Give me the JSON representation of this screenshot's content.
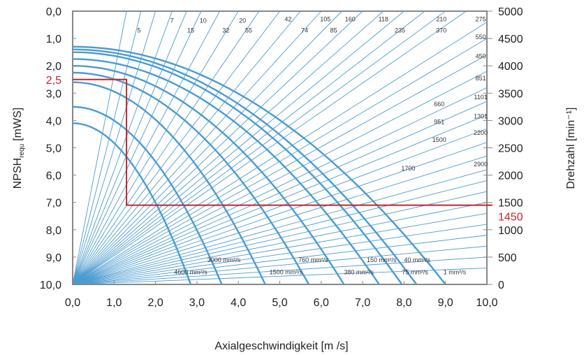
{
  "chart_data": {
    "type": "line",
    "xlabel": "Axialgeschwindigkeit [m /s]",
    "ylabel_left_main": "NPSH",
    "ylabel_left_sub": "requ",
    "ylabel_left_unit": "[mWS]",
    "ylabel_right": "Drehzahl [min⁻¹]",
    "x_ticks": [
      "0,0",
      "1,0",
      "2,0",
      "3,0",
      "4,0",
      "5,0",
      "6,0",
      "7,0",
      "8,0",
      "9,0",
      "10,0"
    ],
    "y_left_ticks": [
      "0,0",
      "1,0",
      "2,0",
      "3,0",
      "4,0",
      "5,0",
      "6,0",
      "7,0",
      "8,0",
      "9,0",
      "10,0"
    ],
    "y_right_ticks": [
      "5000",
      "4500",
      "4000",
      "3500",
      "3000",
      "2500",
      "2000",
      "1500",
      "1000",
      "500",
      "0"
    ],
    "xlim": [
      0,
      10
    ],
    "ylim_left": [
      0,
      10
    ],
    "ylim_right": [
      0,
      5000
    ],
    "grid": false,
    "ray_labels": [
      {
        "t": "5",
        "x": 1.6,
        "y": 0.7
      },
      {
        "t": "7",
        "x": 2.4,
        "y": 0.35
      },
      {
        "t": "10",
        "x": 3.15,
        "y": 0.35
      },
      {
        "t": "15",
        "x": 2.85,
        "y": 0.7
      },
      {
        "t": "20",
        "x": 4.1,
        "y": 0.35
      },
      {
        "t": "32",
        "x": 3.7,
        "y": 0.7
      },
      {
        "t": "55",
        "x": 4.25,
        "y": 0.7
      },
      {
        "t": "42",
        "x": 5.2,
        "y": 0.3
      },
      {
        "t": "74",
        "x": 5.6,
        "y": 0.7
      },
      {
        "t": "105",
        "x": 6.1,
        "y": 0.3
      },
      {
        "t": "85",
        "x": 6.3,
        "y": 0.7
      },
      {
        "t": "160",
        "x": 6.7,
        "y": 0.3
      },
      {
        "t": "118",
        "x": 7.5,
        "y": 0.3
      },
      {
        "t": "235",
        "x": 7.9,
        "y": 0.7
      },
      {
        "t": "210",
        "x": 8.9,
        "y": 0.3
      },
      {
        "t": "275",
        "x": 9.85,
        "y": 0.3
      },
      {
        "t": "370",
        "x": 8.9,
        "y": 0.7
      },
      {
        "t": "550",
        "x": 9.85,
        "y": 0.95
      },
      {
        "t": "450",
        "x": 9.85,
        "y": 1.65
      },
      {
        "t": "851",
        "x": 9.85,
        "y": 2.45
      },
      {
        "t": "1101",
        "x": 9.85,
        "y": 3.15
      },
      {
        "t": "660",
        "x": 8.85,
        "y": 3.4
      },
      {
        "t": "1301",
        "x": 9.85,
        "y": 3.85
      },
      {
        "t": "951",
        "x": 8.85,
        "y": 4.05
      },
      {
        "t": "2200",
        "x": 9.85,
        "y": 4.45
      },
      {
        "t": "1500",
        "x": 8.85,
        "y": 4.7
      },
      {
        "t": "2900",
        "x": 9.85,
        "y": 5.6
      },
      {
        "t": "1700",
        "x": 8.1,
        "y": 5.75
      }
    ],
    "rays_endpoint_x_at_top": [
      1.3,
      1.65,
      2.0,
      2.4,
      2.75,
      3.1,
      3.55,
      4.0,
      4.5,
      5.0,
      5.5,
      6.0,
      6.5,
      7.0,
      7.5,
      8.0,
      8.5,
      9.0,
      9.5
    ],
    "rays_endpoint_y_at_right": [
      0.4,
      1.0,
      1.6,
      2.2,
      2.8,
      3.3,
      3.8,
      4.3,
      4.8,
      5.3,
      5.8,
      6.2,
      6.6,
      7.0,
      7.4,
      7.8,
      8.2,
      8.6,
      9.0,
      9.4
    ],
    "viscosity_curves": [
      {
        "y0": 4.1,
        "x_bottom": 2.85,
        "label": "4600 mm²/s",
        "lx": 2.45,
        "ly": 9.55
      },
      {
        "y0": 3.5,
        "x_bottom": 3.6,
        "label": "3000 mm²/s",
        "lx": 3.25,
        "ly": 9.1
      },
      {
        "y0": 2.6,
        "x_bottom": 4.65,
        "label": "1500 mm²/s",
        "lx": 4.75,
        "ly": 9.55
      },
      {
        "y0": 2.25,
        "x_bottom": 5.7,
        "label": "760 mm²/s",
        "lx": 5.45,
        "ly": 9.1
      },
      {
        "y0": 2.0,
        "x_bottom": 6.55,
        "label": "380 mm²/s",
        "lx": 6.55,
        "ly": 9.55
      },
      {
        "y0": 1.75,
        "x_bottom": 7.4,
        "label": "150 mm²/s",
        "lx": 7.1,
        "ly": 9.1
      },
      {
        "y0": 1.5,
        "x_bottom": 7.95,
        "label": "75 mm²/s",
        "lx": 7.95,
        "ly": 9.55
      },
      {
        "y0": 1.4,
        "x_bottom": 8.3,
        "label": "40 mm²/s",
        "lx": 8.0,
        "ly": 9.1
      },
      {
        "y0": 1.3,
        "x_bottom": 9.0,
        "label": "1 mm²/s",
        "lx": 8.95,
        "ly": 9.55
      }
    ],
    "highlight": {
      "npsh_value": 2.5,
      "npsh_label": "2,5",
      "velocity": 1.3,
      "speed_value": 1450,
      "speed_label": "1450",
      "color": "#c0272d"
    },
    "curve_color": "#4a9bd1",
    "ray_color": "#4a9bd1",
    "frame_color": "#888888"
  }
}
